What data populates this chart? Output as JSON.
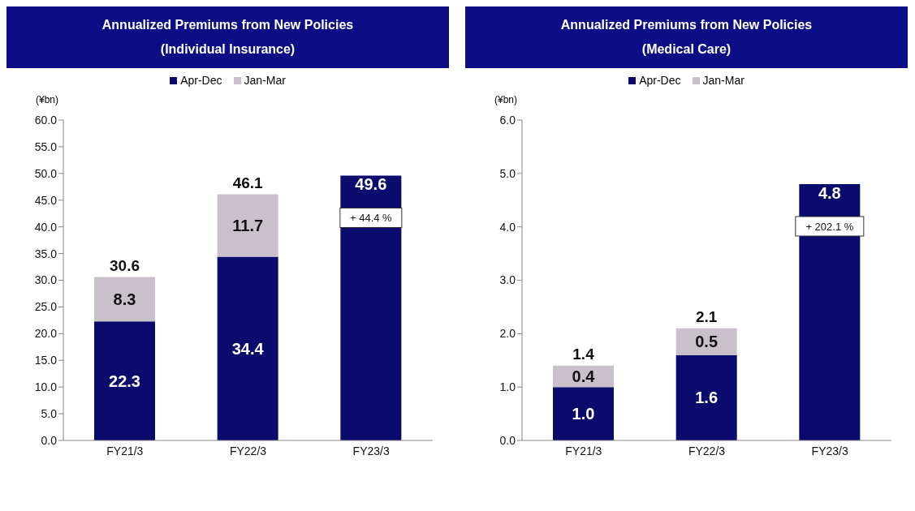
{
  "chart_data": [
    {
      "type": "bar",
      "title": "Annualized Premiums from New Policies",
      "subtitle": "(Individual Insurance)",
      "ylabel": "(¥bn)",
      "categories": [
        "FY21/3",
        "FY22/3",
        "FY23/3"
      ],
      "stacked": true,
      "legend": "top",
      "series": [
        {
          "name": "Apr-Dec",
          "color": "#0b0b6e",
          "values": [
            22.3,
            34.4,
            49.6
          ],
          "value_labels": [
            "22.3",
            "34.4",
            "49.6"
          ]
        },
        {
          "name": "Jan-Mar",
          "color": "#c9c1c9",
          "values": [
            8.3,
            11.7,
            null
          ],
          "value_labels": [
            "8.3",
            "11.7",
            null
          ]
        }
      ],
      "totals": [
        "30.6",
        "46.1",
        null
      ],
      "annotations": [
        "+ 44.4 %"
      ],
      "ylim": [
        0,
        60
      ],
      "yticks": [
        {
          "value": 0,
          "label": "0.0"
        },
        {
          "value": 5,
          "label": "5.0"
        },
        {
          "value": 10,
          "label": "10.0"
        },
        {
          "value": 15,
          "label": "15.0"
        },
        {
          "value": 20,
          "label": "20.0"
        },
        {
          "value": 25,
          "label": "25.0"
        },
        {
          "value": 30,
          "label": "30.0"
        },
        {
          "value": 35,
          "label": "35.0"
        },
        {
          "value": 40,
          "label": "40.0"
        },
        {
          "value": 45,
          "label": "45.0"
        },
        {
          "value": 50,
          "label": "50.0"
        },
        {
          "value": 55,
          "label": "55.0"
        },
        {
          "value": 60,
          "label": "60.0"
        }
      ]
    },
    {
      "type": "bar",
      "title": "Annualized Premiums from New Policies",
      "subtitle": "(Medical Care)",
      "ylabel": "(¥bn)",
      "categories": [
        "FY21/3",
        "FY22/3",
        "FY23/3"
      ],
      "stacked": true,
      "legend": "top",
      "series": [
        {
          "name": "Apr-Dec",
          "color": "#0b0b6e",
          "values": [
            1.0,
            1.6,
            4.8
          ],
          "value_labels": [
            "1.0",
            "1.6",
            "4.8"
          ]
        },
        {
          "name": "Jan-Mar",
          "color": "#c9c1c9",
          "values": [
            0.4,
            0.5,
            null
          ],
          "value_labels": [
            "0.4",
            "0.5",
            null
          ]
        }
      ],
      "totals": [
        "1.4",
        "2.1",
        null
      ],
      "annotations": [
        "+ 202.1 %"
      ],
      "ylim": [
        0,
        6
      ],
      "yticks": [
        {
          "value": 0,
          "label": "0.0"
        },
        {
          "value": 1,
          "label": "1.0"
        },
        {
          "value": 2,
          "label": "2.0"
        },
        {
          "value": 3,
          "label": "3.0"
        },
        {
          "value": 4,
          "label": "4.0"
        },
        {
          "value": 5,
          "label": "5.0"
        },
        {
          "value": 6,
          "label": "6.0"
        }
      ]
    }
  ]
}
